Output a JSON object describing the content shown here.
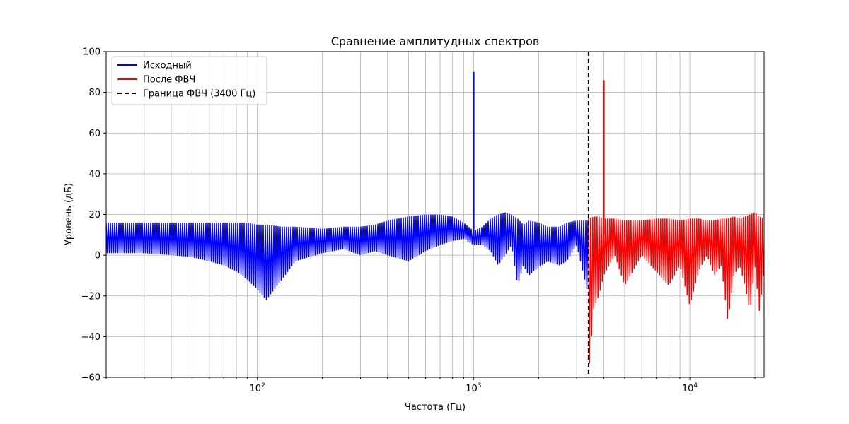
{
  "chart_data": {
    "type": "line",
    "title": "Сравнение амплитудных спектров",
    "xlabel": "Частота (Гц)",
    "ylabel": "Уровень (дБ)",
    "x_scale": "log",
    "xlim": [
      20,
      22050
    ],
    "ylim": [
      -60,
      100
    ],
    "y_ticks": [
      -60,
      -40,
      -20,
      0,
      20,
      40,
      60,
      80,
      100
    ],
    "x_major_ticks": [
      {
        "value": 100,
        "base": "10",
        "exp": "2"
      },
      {
        "value": 1000,
        "base": "10",
        "exp": "3"
      },
      {
        "value": 10000,
        "base": "10",
        "exp": "4"
      }
    ],
    "grid": true,
    "legend_position": "top-left",
    "series": [
      {
        "name": "Исходный",
        "color": "#0000ff",
        "envelope": {
          "x": [
            20,
            22,
            25,
            30,
            40,
            50,
            60,
            70,
            80,
            90,
            100,
            110,
            130,
            150,
            200,
            250,
            300,
            350,
            400,
            500,
            600,
            700,
            800,
            900,
            1000,
            1100,
            1200,
            1300,
            1400,
            1500,
            1600,
            1700,
            1800,
            2000,
            2200,
            2500,
            2700,
            3000,
            3400
          ],
          "upper": [
            16,
            16,
            16,
            16,
            16,
            16,
            16,
            16,
            16,
            16,
            15,
            15,
            14,
            14,
            13,
            14,
            14,
            15,
            17,
            19,
            20,
            20,
            19,
            16,
            12,
            14,
            18,
            20,
            21,
            20,
            18,
            15,
            17,
            16,
            14,
            14,
            16,
            17,
            17
          ],
          "lower": [
            1,
            1,
            1,
            1,
            0,
            -1,
            -3,
            -5,
            -8,
            -12,
            -17,
            -22,
            -12,
            -3,
            1,
            3,
            0,
            2,
            0,
            -3,
            2,
            5,
            7,
            8,
            5,
            5,
            2,
            -5,
            0,
            5,
            -15,
            -5,
            -10,
            -6,
            -3,
            -5,
            -3,
            5,
            -20
          ]
        },
        "peaks": [
          {
            "x": 1000,
            "y": 90
          }
        ]
      },
      {
        "name": "После ФВЧ",
        "color": "#ff0000",
        "envelope": {
          "x": [
            3400,
            3600,
            3800,
            4000,
            4500,
            5000,
            6000,
            7000,
            8000,
            9000,
            10000,
            11000,
            12000,
            13000,
            14000,
            15000,
            16000,
            17000,
            18000,
            19000,
            20000,
            21000,
            22050
          ],
          "upper": [
            18,
            19,
            19,
            18,
            18,
            17,
            17,
            18,
            18,
            17,
            18,
            18,
            17,
            17,
            18,
            18,
            19,
            18,
            19,
            20,
            21,
            19,
            18
          ],
          "lower": [
            -60,
            -26,
            -20,
            -10,
            0,
            -15,
            0,
            -8,
            -15,
            -5,
            -25,
            -8,
            0,
            -10,
            -5,
            -33,
            -10,
            -5,
            -15,
            -28,
            -5,
            -28,
            -8
          ]
        },
        "peaks": [
          {
            "x": 4000,
            "y": 86
          }
        ]
      },
      {
        "name": "Граница ФВЧ (3400 Гц)",
        "color": "#000000",
        "style": "dashed",
        "vline_x": 3400
      }
    ]
  }
}
